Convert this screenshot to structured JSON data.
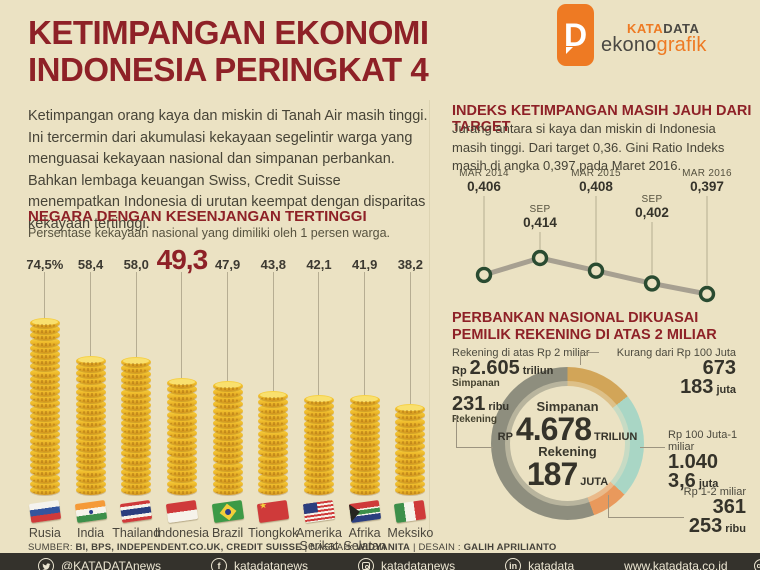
{
  "page": {
    "title_line1": "KETIMPANGAN EKONOMI",
    "title_line2": "INDONESIA PERINGKAT 4",
    "intro": "Ketimpangan orang kaya dan miskin di Tanah Air masih tinggi. Ini tercermin dari akumulasi kekayaan segelintir warga yang menguasai kekayaan nasional dan simpanan perbankan. Bahkan lembaga keuangan Swiss, Credit Suisse menempatkan Indonesia di urutan keempat dengan disparitas kekayaan tertinggi."
  },
  "logo": {
    "d_letter": "D",
    "kata": "KATA",
    "data": "DATA",
    "ekono": "ekono",
    "grafik": "grafik"
  },
  "colors": {
    "background": "#ebe2c3",
    "maroon": "#8e2127",
    "brand_orange": "#ee7a23",
    "coin_gold": "#f0c335",
    "line_gray": "#a7a091",
    "point_green": "#2a4b31",
    "bottombar": "#34322c"
  },
  "left_chart": {
    "title": "NEGARA DENGAN KESENJANGAN TERTINGGI",
    "subtitle": "Persentase kekayaan nasional yang dimiliki oleh 1 persen warga.",
    "countries": [
      {
        "name": "Rusia",
        "value_label": "74,5%",
        "value": 74.5,
        "flag": "rusia",
        "highlight": false
      },
      {
        "name": "India",
        "value_label": "58,4",
        "value": 58.4,
        "flag": "india",
        "highlight": false
      },
      {
        "name": "Thailand",
        "value_label": "58,0",
        "value": 58.0,
        "flag": "thailand",
        "highlight": false
      },
      {
        "name": "Indonesia",
        "value_label": "49,3",
        "value": 49.3,
        "flag": "indonesia",
        "highlight": true
      },
      {
        "name": "Brazil",
        "value_label": "47,9",
        "value": 47.9,
        "flag": "brazil",
        "highlight": false
      },
      {
        "name": "Tiongkok",
        "value_label": "43,8",
        "value": 43.8,
        "flag": "tiongkok",
        "highlight": false
      },
      {
        "name": "Amerika Serikat",
        "value_label": "42,1",
        "value": 42.1,
        "flag": "amerika",
        "highlight": false
      },
      {
        "name": "Afrika Selatan",
        "value_label": "41,9",
        "value": 41.9,
        "flag": "afsel",
        "highlight": false
      },
      {
        "name": "Meksiko",
        "value_label": "38,2",
        "value": 38.2,
        "flag": "meksiko",
        "highlight": false
      }
    ]
  },
  "gini_chart": {
    "title": "INDEKS KETIMPANGAN MASIH JAUH DARI TARGET",
    "description": "Jurang antara si kaya dan miskin di Indonesia masih tinggi. Dari target 0,36. Gini Ratio Indeks masih di angka 0,397 pada Maret 2016.",
    "points": [
      {
        "label": "MAR 2014",
        "value_label": "0,406",
        "value": 0.406,
        "label_pos": "top"
      },
      {
        "label": "SEP",
        "value_label": "0,414",
        "value": 0.414,
        "label_pos": "low"
      },
      {
        "label": "MAR 2015",
        "value_label": "0,408",
        "value": 0.408,
        "label_pos": "top"
      },
      {
        "label": "SEP",
        "value_label": "0,402",
        "value": 0.402,
        "label_pos": "mid"
      },
      {
        "label": "MAR 2016",
        "value_label": "0,397",
        "value": 0.397,
        "label_pos": "top"
      }
    ]
  },
  "banking": {
    "title_line1": "PERBANKAN NASIONAL DIKUASAI",
    "title_line2": "PEMILIK REKENING DI ATAS 2 MILIAR",
    "center": {
      "simpanan_label": "Simpanan",
      "rp": "RP",
      "amount": "4.678",
      "unit": "TRILIUN",
      "rekening_label": "Rekening",
      "count": "187",
      "count_unit": "JUTA"
    },
    "segments": [
      {
        "label": "Kurang dari Rp 100 Juta",
        "amount": "673",
        "count": "183",
        "count_unit": "juta",
        "color": "#d2a558",
        "value": 673
      },
      {
        "label": "Rp 100 Juta-1 miliar",
        "amount": "1.040",
        "count": "3,6",
        "count_unit": "juta",
        "color": "#a9d6c5",
        "value": 1040
      },
      {
        "label": "Rp 1-2 miliar",
        "amount": "361",
        "count": "253",
        "count_unit": "ribu",
        "color": "#e9995c",
        "value": 361
      },
      {
        "label": "Rekening di atas Rp 2 miliar",
        "amount_prefix": "Rp",
        "amount": "2.605",
        "amount_unit": "triliun",
        "amount_caption": "Simpanan",
        "count": "231",
        "count_unit": "ribu",
        "count_caption": "Rekening",
        "color": "#8e8e7e",
        "value": 2605
      }
    ]
  },
  "footer": {
    "source_label": "SUMBER:",
    "source": "BI, BPS, INDEPENDENT.CO.UK, CREDIT SUISSE",
    "sep1": "|",
    "naskah_label": "NASKAH:",
    "naskah": "WIDYANITA",
    "sep2": "|",
    "desain_label": "DESAIN :",
    "desain": "GALIH APRILIANTO"
  },
  "bottombar": {
    "twitter": "@KATADATAnews",
    "facebook": "katadatanews",
    "instagram": "katadatanews",
    "linkedin": "katadata",
    "url": "www.katadata.co.id",
    "cc1": "cc",
    "cc3": "="
  },
  "chart_data": [
    {
      "type": "bar",
      "title": "NEGARA DENGAN KESENJANGAN TERTINGGI",
      "subtitle": "Persentase kekayaan nasional yang dimiliki oleh 1 persen warga.",
      "categories": [
        "Rusia",
        "India",
        "Thailand",
        "Indonesia",
        "Brazil",
        "Tiongkok",
        "Amerika Serikat",
        "Afrika Selatan",
        "Meksiko"
      ],
      "values": [
        74.5,
        58.4,
        58.0,
        49.3,
        47.9,
        43.8,
        42.1,
        41.9,
        38.2
      ],
      "unit": "%",
      "highlight_index": 3,
      "ylim": [
        0,
        80
      ],
      "style": "coin-stacks"
    },
    {
      "type": "line",
      "title": "INDEKS KETIMPANGAN MASIH JAUH DARI TARGET",
      "x": [
        "MAR 2014",
        "SEP",
        "MAR 2015",
        "SEP",
        "MAR 2016"
      ],
      "values": [
        0.406,
        0.414,
        0.408,
        0.402,
        0.397
      ],
      "target": 0.36,
      "ylabel": "Gini Ratio Indeks"
    },
    {
      "type": "pie",
      "title": "PERBANKAN NASIONAL DIKUASAI PEMILIK REKENING DI ATAS 2 MILIAR",
      "labels": [
        "Kurang dari Rp 100 Juta",
        "Rp 100 Juta-1 miliar",
        "Rp 1-2 miliar",
        "Rekening di atas Rp 2 miliar"
      ],
      "values": [
        673,
        1040,
        361,
        2605
      ],
      "values_unit": "Rp triliun simpanan",
      "counts": [
        "183 juta",
        "3,6 juta",
        "253 ribu",
        "231 ribu"
      ],
      "counts_unit": "rekening",
      "total_simpanan": "RP 4.678 TRILIUN",
      "total_rekening": "187 JUTA"
    }
  ]
}
